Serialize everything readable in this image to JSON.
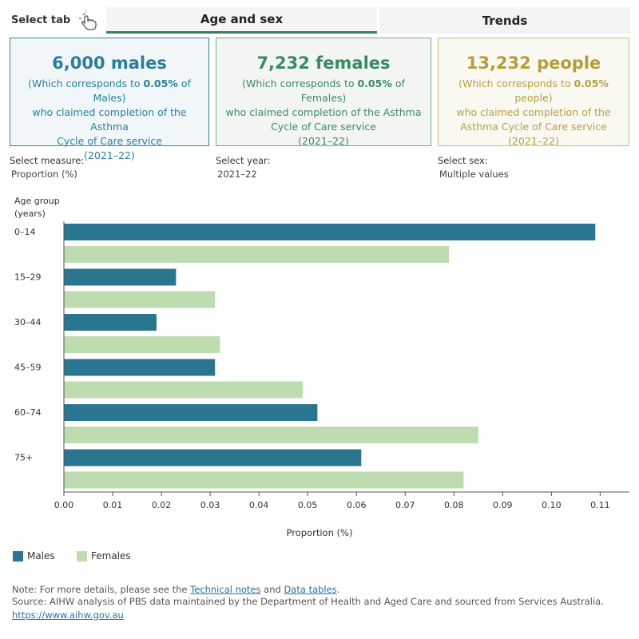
{
  "tabs": {
    "select_label": "Select tab",
    "active": "Age and sex",
    "inactive": "Trends"
  },
  "cards": {
    "males": {
      "headline": "6,000 males",
      "pre": "(Which corresponds to ",
      "pct": "0.05%",
      "post": " of Males)",
      "line2": "who claimed completion of the Asthma",
      "line3": "Cycle of Care service",
      "period": "(2021–22)"
    },
    "females": {
      "headline": "7,232 females",
      "pre": "(Which corresponds to ",
      "pct": "0.05%",
      "post": " of Females)",
      "line2": "who claimed completion of the Asthma",
      "line3": "Cycle of Care service",
      "period": "(2021–22)"
    },
    "people": {
      "headline": "13,232 people",
      "pre": "(Which corresponds to ",
      "pct": "0.05%",
      "post": " people)",
      "line2": "who claimed completion of the",
      "line3": "Asthma Cycle of Care service",
      "period": "(2021–22)"
    }
  },
  "filters": {
    "measure": {
      "label": "Select measure:",
      "value": "Proportion (%)"
    },
    "year": {
      "label": "Select year:",
      "value": "2021–22"
    },
    "sex": {
      "label": "Select sex:",
      "value": "Multiple values"
    }
  },
  "colors": {
    "males": "#2a7590",
    "females": "#bfdbb0"
  },
  "chart_data": {
    "type": "bar",
    "orientation": "horizontal",
    "ylabel": "Age group (years)",
    "ylabel_lines": [
      "Age group",
      "(years)"
    ],
    "xlabel": "Proportion (%)",
    "categories": [
      "0–14",
      "15–29",
      "30–44",
      "45–59",
      "60–74",
      "75+"
    ],
    "series": [
      {
        "name": "Males",
        "values": [
          0.109,
          0.023,
          0.019,
          0.031,
          0.052,
          0.061
        ]
      },
      {
        "name": "Females",
        "values": [
          0.079,
          0.031,
          0.032,
          0.049,
          0.085,
          0.082
        ]
      }
    ],
    "xlim": [
      0,
      0.116
    ],
    "xticks": [
      "0.00",
      "0.01",
      "0.02",
      "0.03",
      "0.04",
      "0.05",
      "0.06",
      "0.07",
      "0.08",
      "0.09",
      "0.10",
      "0.11"
    ],
    "grid": false,
    "legend_position": "bottom-left"
  },
  "footer": {
    "note_pre": "Note: For more details, please see the ",
    "note_link1": "Technical notes",
    "note_mid": " and ",
    "note_link2": "Data tables",
    "note_post": ".",
    "source": "Source: AIHW analysis of PBS data maintained by the Department of Health and Aged Care and sourced from Services Australia.",
    "url": "https://www.aihw.gov.au"
  }
}
